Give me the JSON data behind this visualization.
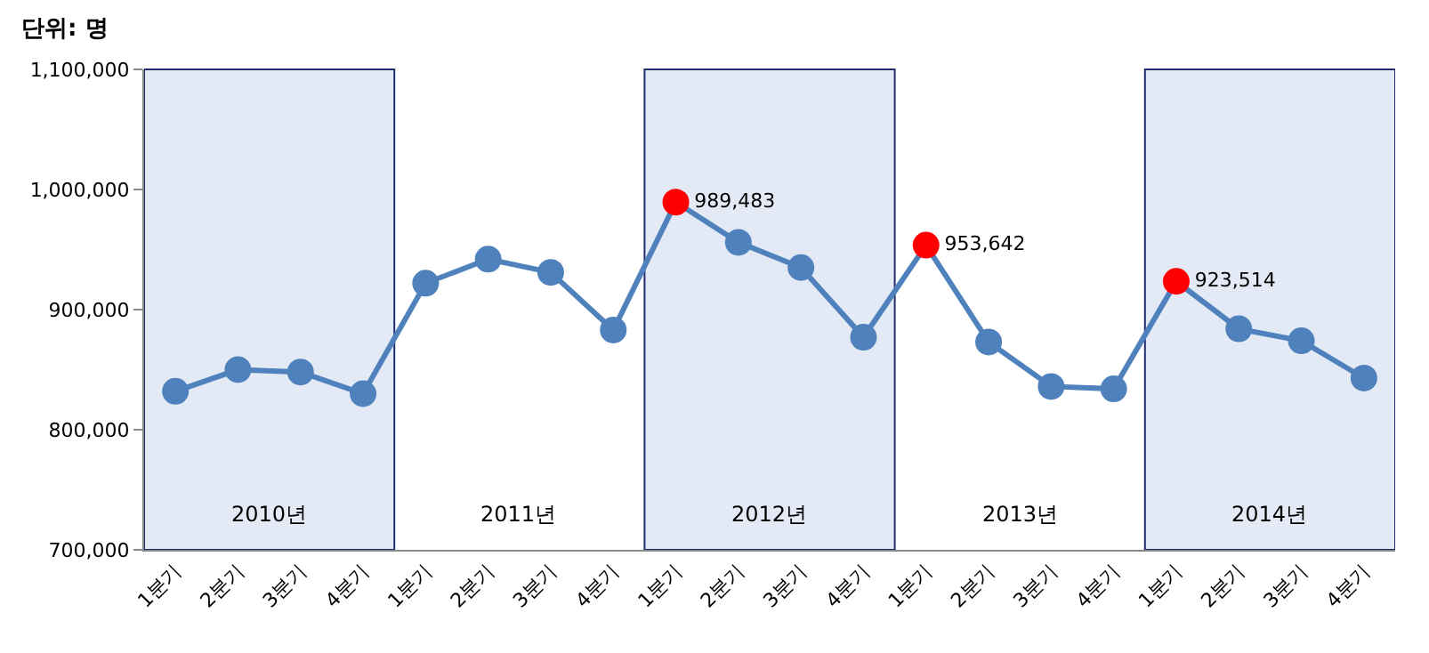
{
  "chart_data": {
    "type": "line",
    "title": "단위: 명",
    "categories": [
      "1분기",
      "2분기",
      "3분기",
      "4분기",
      "1분기",
      "2분기",
      "3분기",
      "4분기",
      "1분기",
      "2분기",
      "3분기",
      "4분기",
      "1분기",
      "2분기",
      "3분기",
      "4분기",
      "1분기",
      "2분기",
      "3분기",
      "4분기"
    ],
    "series": [
      {
        "color": "#4f81bd",
        "values": [
          832000,
          850000,
          848000,
          830000,
          922000,
          942000,
          931000,
          883000,
          989483,
          956000,
          935000,
          877000,
          953642,
          873000,
          836000,
          834000,
          923514,
          884000,
          874000,
          843000
        ],
        "colors": [
          "#4f81bd",
          "#4f81bd",
          "#4f81bd",
          "#4f81bd",
          "#4f81bd",
          "#4f81bd",
          "#4f81bd",
          "#4f81bd",
          "#ff0000",
          "#4f81bd",
          "#4f81bd",
          "#4f81bd",
          "#ff0000",
          "#4f81bd",
          "#4f81bd",
          "#4f81bd",
          "#ff0000",
          "#4f81bd",
          "#4f81bd",
          "#4f81bd"
        ],
        "value_labels": [
          null,
          null,
          null,
          null,
          null,
          null,
          null,
          null,
          "989,483",
          null,
          null,
          null,
          "953,642",
          null,
          null,
          null,
          "923,514",
          null,
          null,
          null
        ]
      }
    ],
    "ylim": [
      700000,
      1100000
    ],
    "yticks": [
      {
        "value": 700000,
        "label": "700,000"
      },
      {
        "value": 800000,
        "label": "800,000"
      },
      {
        "value": 900000,
        "label": "900,000"
      },
      {
        "value": 1000000,
        "label": "1,000,000"
      },
      {
        "value": 1100000,
        "label": "1,100,000"
      }
    ],
    "annotations": [
      "2010년",
      "2011년",
      "2012년",
      "2013년",
      "2014년"
    ],
    "grid": false,
    "marker": "circle",
    "line_style": "solid"
  }
}
